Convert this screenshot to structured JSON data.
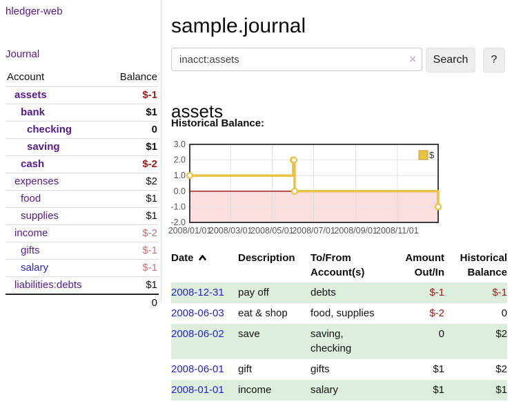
{
  "sidebar": {
    "app_title": "hledger-web",
    "nav": [
      {
        "label": "Journal"
      }
    ],
    "accounts_table": {
      "headers": {
        "account": "Account",
        "balance": "Balance"
      },
      "rows": [
        {
          "account": "assets",
          "indent": 1,
          "emph": true,
          "link_style": "purple",
          "balance": "$-1",
          "balance_style": "negative"
        },
        {
          "account": "bank",
          "indent": 2,
          "emph": true,
          "link_style": "purple",
          "balance": "$1",
          "balance_style": "normal"
        },
        {
          "account": "checking",
          "indent": 3,
          "emph": true,
          "link_style": "purple",
          "balance": "0",
          "balance_style": "normal"
        },
        {
          "account": "saving",
          "indent": 3,
          "emph": true,
          "link_style": "purple",
          "balance": "$1",
          "balance_style": "normal"
        },
        {
          "account": "cash",
          "indent": 2,
          "emph": true,
          "link_style": "purple",
          "balance": "$-2",
          "balance_style": "negative"
        },
        {
          "account": "expenses",
          "indent": 1,
          "emph": false,
          "link_style": "purple",
          "balance": "$2",
          "balance_style": "normal"
        },
        {
          "account": "food",
          "indent": 2,
          "emph": false,
          "link_style": "purple",
          "balance": "$1",
          "balance_style": "normal"
        },
        {
          "account": "supplies",
          "indent": 2,
          "emph": false,
          "link_style": "purple",
          "balance": "$1",
          "balance_style": "normal"
        },
        {
          "account": "income",
          "indent": 1,
          "emph": false,
          "link_style": "purple",
          "balance": "$-2",
          "balance_style": "rose"
        },
        {
          "account": "gifts",
          "indent": 2,
          "emph": false,
          "link_style": "purple",
          "balance": "$-1",
          "balance_style": "rose"
        },
        {
          "account": "salary",
          "indent": 2,
          "emph": false,
          "link_style": "blue",
          "balance": "$-1",
          "balance_style": "rose"
        },
        {
          "account": "liabilities:debts",
          "indent": 1,
          "emph": false,
          "link_style": "purple",
          "balance": "$1",
          "balance_style": "normal"
        }
      ],
      "total": "0"
    }
  },
  "header": {
    "title": "sample.journal"
  },
  "search": {
    "value": "inacct:assets",
    "clear_icon": "×",
    "button_label": "Search",
    "help_label": "?"
  },
  "account_page": {
    "heading": "assets",
    "chart_label": "Historical Balance:"
  },
  "chart_data": {
    "type": "line",
    "title": "Historical Balance:",
    "legend": {
      "label": "$",
      "position": "top-right",
      "swatch_color": "#e8c240",
      "swatch_border": "#c2a12e"
    },
    "x_range": [
      0,
      365
    ],
    "y_range": [
      -2.0,
      3.0
    ],
    "y_ticks": [
      {
        "v": 3.0,
        "label": "3.0"
      },
      {
        "v": 2.0,
        "label": "2.0"
      },
      {
        "v": 1.0,
        "label": "1.0"
      },
      {
        "v": 0.0,
        "label": "0.0"
      },
      {
        "v": -1.0,
        "label": "-1.0"
      },
      {
        "v": -2.0,
        "label": "-2.0"
      }
    ],
    "x_ticks": [
      {
        "v": 0,
        "label": "2008/01/01"
      },
      {
        "v": 60,
        "label": "2008/03/01"
      },
      {
        "v": 121,
        "label": "2008/05/01"
      },
      {
        "v": 182,
        "label": "2008/07/01"
      },
      {
        "v": 244,
        "label": "2008/09/01"
      },
      {
        "v": 305,
        "label": "2008/11/01"
      }
    ],
    "series": [
      {
        "name": "$",
        "color": "#e8c240",
        "step": true,
        "points": [
          {
            "date": "2008-01-01",
            "x": 0,
            "y": 1.0
          },
          {
            "date": "2008-06-01",
            "x": 152,
            "y": 2.0
          },
          {
            "date": "2008-06-02",
            "x": 153,
            "y": 2.0
          },
          {
            "date": "2008-06-03",
            "x": 154,
            "y": 0.0
          },
          {
            "date": "2008-12-31",
            "x": 365,
            "y": -1.0
          }
        ]
      }
    ],
    "grid": true,
    "negative_region_fill": "#fbdede",
    "zero_line_color": "#9c1010",
    "border_color": "#3f3f3f",
    "grid_color": "#e2e2e2",
    "tick_color": "#545454"
  },
  "register_table": {
    "sort": {
      "column": "date",
      "direction": "ascending"
    },
    "headers": {
      "date": [
        "Date"
      ],
      "description": [
        "Description"
      ],
      "accounts": [
        "To/From",
        "Account(s)"
      ],
      "amount": [
        "Amount",
        "Out/In"
      ],
      "balance": [
        "Historical",
        "Balance"
      ]
    },
    "rows": [
      {
        "date": "2008-12-31",
        "description": "pay off",
        "accounts_lines": [
          "debts"
        ],
        "amount": "$-1",
        "amount_style": "negative",
        "balance": "$-1",
        "balance_style": "negative",
        "shaded": true
      },
      {
        "date": "2008-06-03",
        "description": "eat & shop",
        "accounts_lines": [
          "food, supplies"
        ],
        "amount": "$-2",
        "amount_style": "negative",
        "balance": "0",
        "balance_style": "normal",
        "shaded": false
      },
      {
        "date": "2008-06-02",
        "description": "save",
        "accounts_lines": [
          "saving,",
          "checking"
        ],
        "amount": "0",
        "amount_style": "normal",
        "balance": "$2",
        "balance_style": "normal",
        "shaded": true
      },
      {
        "date": "2008-06-01",
        "description": "gift",
        "accounts_lines": [
          "gifts"
        ],
        "amount": "$1",
        "amount_style": "normal",
        "balance": "$2",
        "balance_style": "normal",
        "shaded": false
      },
      {
        "date": "2008-01-01",
        "description": "income",
        "accounts_lines": [
          "salary"
        ],
        "amount": "$1",
        "amount_style": "normal",
        "balance": "$1",
        "balance_style": "normal",
        "shaded": true
      }
    ]
  }
}
